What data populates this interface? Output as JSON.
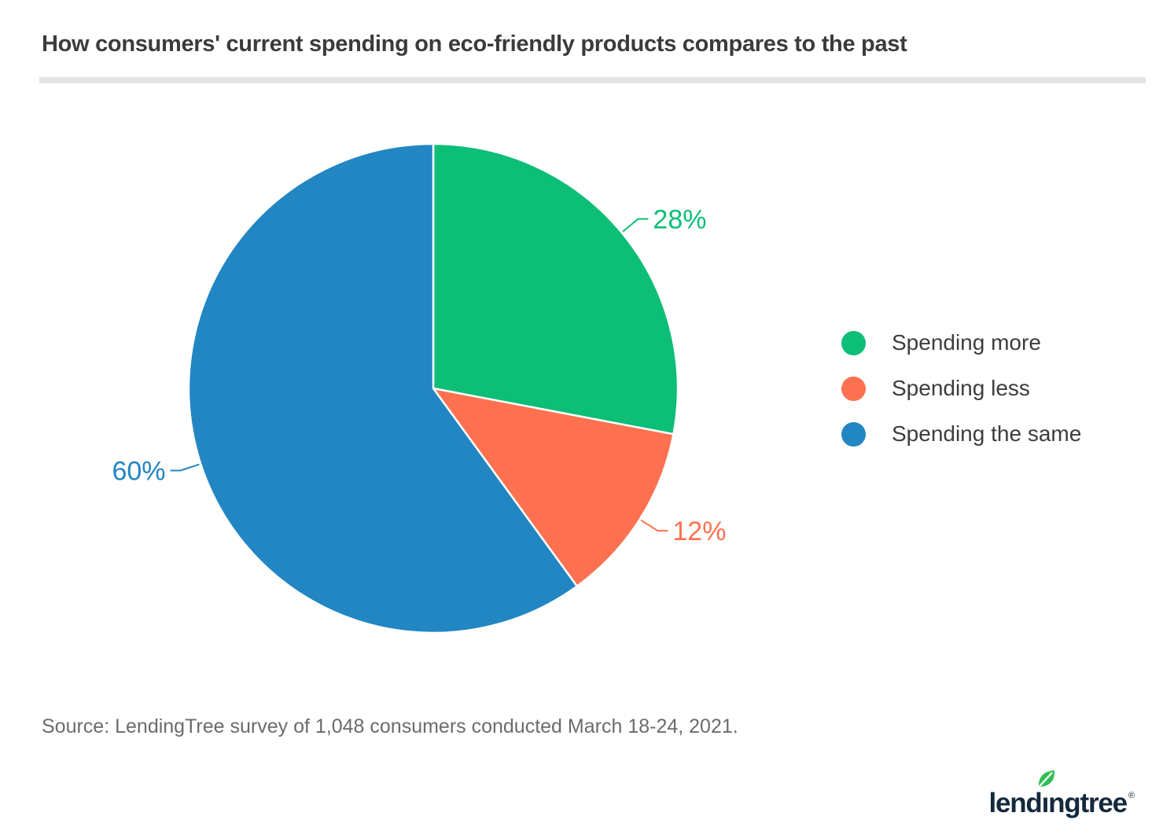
{
  "page": {
    "title": "How consumers' current spending on eco-friendly products compares to the past",
    "source": "Source: LendingTree survey of 1,048 consumers conducted March 18-24, 2021."
  },
  "logo": {
    "part_lend": "lend",
    "part_i": "ı",
    "part_ngtree": "ngtree",
    "registered": "®",
    "text_color": "#15293d",
    "leaf_color": "#2fbe55"
  },
  "colors": {
    "title_text": "#3b3b3b",
    "source_text": "#6b6b6b",
    "legend_text": "#3d3d3d",
    "divider": "#e4e4e4",
    "slice_separator": "#ffffff"
  },
  "chart_data": {
    "type": "pie",
    "title": "How consumers' current spending on eco-friendly products compares to the past",
    "categories": [
      "Spending more",
      "Spending less",
      "Spending the same"
    ],
    "values": [
      28,
      12,
      60
    ],
    "value_labels": [
      "28%",
      "12%",
      "60%"
    ],
    "colors": [
      "#0cbe76",
      "#fd7150",
      "#2286c3"
    ],
    "start_angle_deg": 0,
    "direction": "clockwise",
    "legend_position": "right",
    "grid": false
  }
}
